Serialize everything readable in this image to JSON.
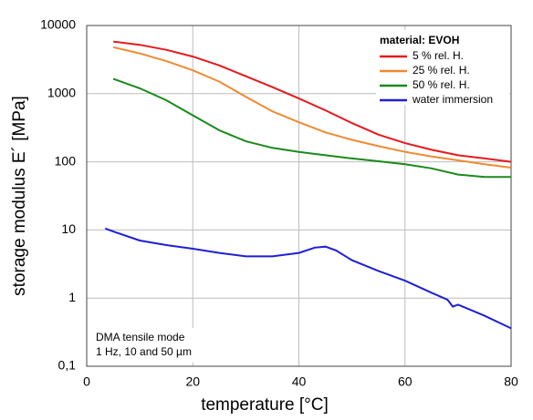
{
  "chart_data": {
    "type": "line",
    "x_label": "temperature [°C]",
    "y_label": "storage modulus E´ [MPa]",
    "log_y": true,
    "grid": true,
    "xlim": [
      0,
      80
    ],
    "xticks": [
      0,
      20,
      40,
      60,
      80
    ],
    "ylim": [
      0.1,
      10000
    ],
    "yticks": [
      {
        "value": 0.1,
        "label": "0,1"
      },
      1,
      10,
      100,
      1000,
      10000
    ],
    "legend_title": "material: EVOH",
    "legend_position": "upper right",
    "annotations": [
      "DMA tensile mode",
      "1 Hz, 10 and 50 µm"
    ],
    "series": [
      {
        "name": "5 % rel. H.",
        "color": "#e41a1c",
        "x": [
          5,
          10,
          15,
          20,
          25,
          30,
          35,
          40,
          45,
          50,
          55,
          60,
          65,
          70,
          75,
          80
        ],
        "values": [
          5800,
          5200,
          4400,
          3500,
          2600,
          1800,
          1250,
          850,
          570,
          370,
          250,
          188,
          150,
          125,
          112,
          100
        ]
      },
      {
        "name": "25 % rel. H.",
        "color": "#f08a30",
        "x": [
          5,
          10,
          15,
          20,
          25,
          30,
          35,
          40,
          45,
          50,
          55,
          60,
          65,
          70,
          75,
          80
        ],
        "values": [
          4800,
          3900,
          3000,
          2200,
          1500,
          900,
          550,
          380,
          270,
          210,
          170,
          140,
          120,
          105,
          92,
          82
        ]
      },
      {
        "name": "50 % rel. H.",
        "color": "#1a8a1a",
        "x": [
          5,
          10,
          15,
          20,
          25,
          30,
          35,
          40,
          45,
          50,
          55,
          60,
          65,
          70,
          75,
          80
        ],
        "values": [
          1650,
          1200,
          800,
          480,
          290,
          200,
          160,
          140,
          125,
          112,
          102,
          92,
          80,
          65,
          60,
          60
        ]
      },
      {
        "name": "water immersion",
        "color": "#1f1fd6",
        "x": [
          3.5,
          5,
          10,
          15,
          20,
          25,
          30,
          35,
          40,
          43,
          45,
          47,
          50,
          55,
          60,
          65,
          68,
          69,
          70,
          75,
          80
        ],
        "values": [
          10.5,
          9.5,
          7,
          6,
          5.3,
          4.6,
          4.1,
          4.1,
          4.6,
          5.5,
          5.7,
          5.0,
          3.6,
          2.5,
          1.8,
          1.2,
          0.95,
          0.75,
          0.8,
          0.55,
          0.36
        ]
      }
    ]
  }
}
